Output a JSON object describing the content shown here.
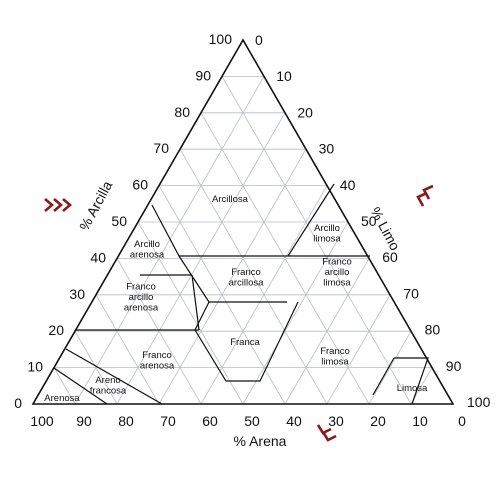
{
  "diagram": {
    "bottom_labels": [
      "100",
      "90",
      "80",
      "70",
      "60",
      "50",
      "40",
      "30",
      "20",
      "10",
      "0"
    ],
    "left_labels": [
      "0",
      "10",
      "20",
      "30",
      "40",
      "50",
      "60",
      "70",
      "80",
      "90",
      "100"
    ],
    "right_labels": [
      "0",
      "10",
      "20",
      "30",
      "40",
      "50",
      "60",
      "70",
      "80",
      "90",
      "100"
    ],
    "axis_titles": {
      "arcilla": "% Arcilla",
      "limo": "% Limo",
      "arena": "% Arena"
    },
    "regions": [
      {
        "id": "arcillosa",
        "lines": [
          "Arcillosa"
        ]
      },
      {
        "id": "arcillo-limosa",
        "lines": [
          "Arcillo",
          "limosa"
        ]
      },
      {
        "id": "arcillo-arenosa",
        "lines": [
          "Arcillo",
          "arenosa"
        ]
      },
      {
        "id": "franco-arcillosa",
        "lines": [
          "Franco",
          "arcillosa"
        ]
      },
      {
        "id": "franco-arcillo-limosa",
        "lines": [
          "Franco",
          "arcillo",
          "limosa"
        ]
      },
      {
        "id": "franco-arcillo-arenosa",
        "lines": [
          "Franco",
          "arcillo",
          "arenosa"
        ]
      },
      {
        "id": "franca",
        "lines": [
          "Franca"
        ]
      },
      {
        "id": "franco-limosa",
        "lines": [
          "Franco",
          "limosa"
        ]
      },
      {
        "id": "franco-arenosa",
        "lines": [
          "Franco",
          "arenosa"
        ]
      },
      {
        "id": "limosa",
        "lines": [
          "Limosa"
        ]
      },
      {
        "id": "areno-francosa",
        "lines": [
          "Areno",
          "francosa"
        ]
      },
      {
        "id": "arenosa",
        "lines": [
          "Arenosa"
        ]
      }
    ],
    "marker_color": "#8b1a1a"
  }
}
